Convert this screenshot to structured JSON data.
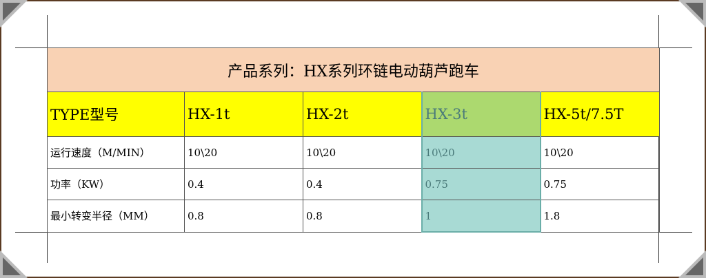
{
  "title": "产品系列：HX系列环链电动葫芦跑车",
  "header": [
    "TYPE型号",
    "HX-1t",
    "HX-2t",
    "HX-3t",
    "HX-5t/7.5T"
  ],
  "rows": [
    [
      "运行速度（M/MIN）",
      "10\\20",
      "10\\20",
      "10\\20",
      "10\\20"
    ],
    [
      "功率（KW）",
      "0.4",
      "0.4",
      "0.75",
      "0.75"
    ],
    [
      "最小转变半径（MM）",
      "0.8",
      "0.8",
      "1",
      "1.8"
    ]
  ],
  "colors": {
    "title_bg": "#f9d2b4",
    "header_bg": "#ffff00",
    "selected_header_bg": "#acd96f",
    "selected_cell_bg": "#a8dad4",
    "frame": "#5a3a22"
  }
}
